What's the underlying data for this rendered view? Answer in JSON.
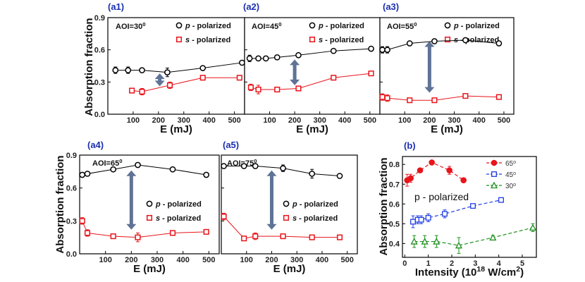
{
  "colors": {
    "p": "#000000",
    "s": "#e8141b",
    "p65": "#e8141b",
    "p45": "#1f3ee0",
    "p30": "#1d8f1d",
    "label": "#1a2fb0",
    "arrow": "#5e7396"
  },
  "legend": {
    "p_prefix": "p",
    "p_suffix": " - polarized",
    "s_prefix": "s",
    "s_suffix": " - polarized",
    "deg": "0"
  },
  "chart_data": [
    {
      "id": "a1",
      "type": "line",
      "panel_label": "(a1)",
      "aoi": "AOI=30",
      "aoi_sup": "0",
      "xlabel": "E (mJ)",
      "ylabel": "Absorption fraction",
      "xlim": [
        0,
        540
      ],
      "ylim": [
        0,
        0.9
      ],
      "xticks": [
        100,
        200,
        300,
        400,
        500
      ],
      "yticks": [
        0.0,
        0.3,
        0.6,
        0.9
      ],
      "xticklabels": [
        "100",
        "200",
        "300",
        "400",
        "500"
      ],
      "yticklabels": [
        "0.0",
        "0.3",
        "0.6",
        "0.9"
      ],
      "arrow": [
        205,
        0.38,
        0.26
      ],
      "series": [
        {
          "name": "p - polarized",
          "x": [
            30,
            80,
            135,
            235,
            375,
            530
          ],
          "y": [
            0.41,
            0.41,
            0.41,
            0.39,
            0.43,
            0.48
          ],
          "err": [
            0.03,
            0.03,
            0.02,
            0.04,
            0.01,
            0.01
          ]
        },
        {
          "name": "s - polarized",
          "x": [
            95,
            135,
            245,
            375,
            520
          ],
          "y": [
            0.22,
            0.21,
            0.27,
            0.34,
            0.34
          ],
          "err": [
            0.02,
            0.03,
            0.03,
            0.01,
            0.01
          ]
        }
      ]
    },
    {
      "id": "a2",
      "type": "line",
      "panel_label": "(a2)",
      "aoi": "AOI=45",
      "aoi_sup": "0",
      "xlabel": "E (mJ)",
      "ylabel": "",
      "xlim": [
        0,
        540
      ],
      "ylim": [
        0,
        0.9
      ],
      "xticks": [
        100,
        200,
        300,
        400,
        500
      ],
      "yticks": [
        0.0,
        0.3,
        0.6,
        0.9
      ],
      "xticklabels": [
        "100",
        "200",
        "300",
        "400",
        "500"
      ],
      "yticklabels": [],
      "arrow": [
        200,
        0.51,
        0.27
      ],
      "series": [
        {
          "name": "p - polarized",
          "x": [
            20,
            55,
            85,
            130,
            215,
            355,
            505
          ],
          "y": [
            0.52,
            0.52,
            0.52,
            0.53,
            0.55,
            0.59,
            0.61
          ],
          "err": [
            0.03,
            0.02,
            0.02,
            0.02,
            0.01,
            0.01,
            0.01
          ]
        },
        {
          "name": "s - polarized",
          "x": [
            25,
            55,
            130,
            215,
            355,
            505
          ],
          "y": [
            0.25,
            0.23,
            0.23,
            0.24,
            0.34,
            0.38
          ],
          "err": [
            0.03,
            0.04,
            0.02,
            0.01,
            0.01,
            0.02
          ]
        }
      ]
    },
    {
      "id": "a3",
      "type": "line",
      "panel_label": "(a3)",
      "aoi": "AOI=55",
      "aoi_sup": "0",
      "xlabel": "E (mJ)",
      "ylabel": "",
      "xlim": [
        0,
        540
      ],
      "ylim": [
        0,
        0.9
      ],
      "xticks": [
        100,
        200,
        300,
        400,
        500
      ],
      "yticks": [
        0.0,
        0.3,
        0.6,
        0.9
      ],
      "xticklabels": [
        "100",
        "200",
        "300",
        "400",
        "500"
      ],
      "yticklabels": [],
      "arrow": [
        200,
        0.68,
        0.2
      ],
      "series": [
        {
          "name": "p - polarized",
          "x": [
            10,
            30,
            120,
            220,
            345,
            480
          ],
          "y": [
            0.6,
            0.6,
            0.66,
            0.68,
            0.69,
            0.66
          ],
          "err": [
            0.03,
            0.03,
            0.01,
            0.01,
            0.01,
            0.01
          ]
        },
        {
          "name": "s - polarized",
          "x": [
            10,
            30,
            120,
            220,
            345,
            480
          ],
          "y": [
            0.16,
            0.15,
            0.13,
            0.13,
            0.17,
            0.16
          ],
          "err": [
            0.03,
            0.03,
            0.02,
            0.01,
            0.01,
            0.01
          ]
        }
      ]
    },
    {
      "id": "a4",
      "type": "line",
      "panel_label": "(a4)",
      "aoi": "AOI=65",
      "aoi_sup": "0",
      "xlabel": "E (mJ)",
      "ylabel": "Absorption fraction",
      "xlim": [
        0,
        540
      ],
      "ylim": [
        0,
        0.9
      ],
      "xticks": [
        100,
        200,
        300,
        400,
        500
      ],
      "yticks": [
        0.0,
        0.3,
        0.6,
        0.9
      ],
      "xticklabels": [
        "100",
        "200",
        "300",
        "400",
        "500"
      ],
      "yticklabels": [
        "0.0",
        "0.3",
        "0.6",
        "0.9"
      ],
      "arrow": [
        200,
        0.76,
        0.22
      ],
      "series": [
        {
          "name": "p - polarized",
          "x": [
            10,
            30,
            130,
            225,
            360,
            490
          ],
          "y": [
            0.72,
            0.73,
            0.77,
            0.81,
            0.77,
            0.72
          ],
          "err": [
            0.02,
            0.02,
            0.01,
            0.01,
            0.01,
            0.01
          ]
        },
        {
          "name": "s - polarized",
          "x": [
            10,
            30,
            130,
            225,
            360,
            490
          ],
          "y": [
            0.3,
            0.19,
            0.16,
            0.15,
            0.19,
            0.2
          ],
          "err": [
            0.03,
            0.03,
            0.02,
            0.04,
            0.01,
            0.01
          ]
        }
      ]
    },
    {
      "id": "a5",
      "type": "line",
      "panel_label": "(a5)",
      "aoi": "AOI=75",
      "aoi_sup": "0",
      "xlabel": "E (mJ)",
      "ylabel": "",
      "xlim": [
        0,
        540
      ],
      "ylim": [
        0,
        0.9
      ],
      "xticks": [
        100,
        200,
        300,
        400,
        500
      ],
      "yticks": [
        0.0,
        0.3,
        0.6,
        0.9
      ],
      "xticklabels": [
        "100",
        "200",
        "300",
        "400",
        "500"
      ],
      "yticklabels": [],
      "arrow": [
        200,
        0.76,
        0.22
      ],
      "series": [
        {
          "name": "p - polarized",
          "x": [
            10,
            90,
            135,
            245,
            360,
            470
          ],
          "y": [
            0.8,
            0.8,
            0.8,
            0.78,
            0.73,
            0.71
          ],
          "err": [
            0.01,
            0.01,
            0.01,
            0.03,
            0.04,
            0.01
          ]
        },
        {
          "name": "s - polarized",
          "x": [
            10,
            90,
            135,
            245,
            360,
            470
          ],
          "y": [
            0.34,
            0.14,
            0.16,
            0.16,
            0.15,
            0.15
          ],
          "err": [
            0.03,
            0.02,
            0.03,
            0.02,
            0.01,
            0.01
          ]
        }
      ]
    },
    {
      "id": "b",
      "type": "line",
      "panel_label": "(b)",
      "note": "p - polarized",
      "xlabel": "Intensity (10",
      "xlabel_sup1": "18",
      "xlabel_mid": " W/cm",
      "xlabel_sup2": "2",
      "xlabel_end": ")",
      "ylabel": "Absorption fraction",
      "xlim": [
        -0.1,
        5.6
      ],
      "ylim": [
        0.33,
        0.84
      ],
      "xticks": [
        0,
        1,
        2,
        3,
        4,
        5
      ],
      "yticks": [
        0.4,
        0.5,
        0.6,
        0.7,
        0.8
      ],
      "xticklabels": [
        "0",
        "1",
        "2",
        "3",
        "4",
        "5"
      ],
      "yticklabels": [
        "0.4",
        "0.5",
        "0.6",
        "0.7",
        "0.8"
      ],
      "series": [
        {
          "name": "65",
          "sup": "o",
          "x": [
            0.1,
            0.25,
            0.65,
            1.15,
            1.9,
            2.5
          ],
          "y": [
            0.72,
            0.73,
            0.77,
            0.81,
            0.77,
            0.72
          ],
          "err": [
            0.03,
            0.02,
            0.01,
            0.01,
            0.02,
            0.01
          ]
        },
        {
          "name": "45",
          "sup": "o",
          "x": [
            0.35,
            0.55,
            0.7,
            1.0,
            1.7,
            2.9,
            4.1
          ],
          "y": [
            0.51,
            0.52,
            0.52,
            0.53,
            0.55,
            0.59,
            0.62
          ],
          "err": [
            0.03,
            0.02,
            0.02,
            0.02,
            0.02,
            0.01,
            0.01
          ]
        },
        {
          "name": "30",
          "sup": "o",
          "x": [
            0.4,
            0.85,
            1.35,
            2.3,
            3.75,
            5.45
          ],
          "y": [
            0.41,
            0.41,
            0.41,
            0.39,
            0.43,
            0.48
          ],
          "err": [
            0.03,
            0.03,
            0.03,
            0.04,
            0.01,
            0.02
          ]
        }
      ]
    }
  ]
}
